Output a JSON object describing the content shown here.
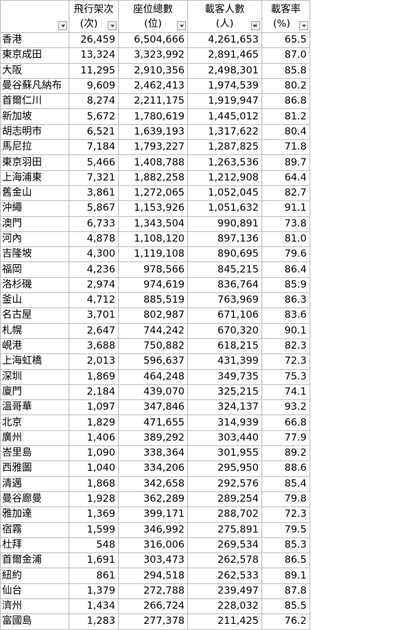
{
  "headers": [
    {
      "l1": "",
      "l2": ""
    },
    {
      "l1": "飛行架次",
      "l2": "(次)"
    },
    {
      "l1": "座位總數",
      "l2": "(位)"
    },
    {
      "l1": "載客人數",
      "l2": "(人)"
    },
    {
      "l1": "載客率",
      "l2": "(%)"
    }
  ],
  "rows": [
    [
      "香港",
      "26,459",
      "6,504,666",
      "4,261,653",
      "65.5"
    ],
    [
      "東京成田",
      "13,324",
      "3,323,992",
      "2,891,465",
      "87.0"
    ],
    [
      "大阪",
      "11,295",
      "2,910,356",
      "2,498,301",
      "85.8"
    ],
    [
      "曼谷蘇凡納布",
      "9,609",
      "2,462,413",
      "1,974,539",
      "80.2"
    ],
    [
      "首爾仁川",
      "8,274",
      "2,211,175",
      "1,919,947",
      "86.8"
    ],
    [
      "新加坡",
      "5,672",
      "1,780,619",
      "1,445,012",
      "81.2"
    ],
    [
      "胡志明市",
      "6,521",
      "1,639,193",
      "1,317,622",
      "80.4"
    ],
    [
      "馬尼拉",
      "7,184",
      "1,793,227",
      "1,287,825",
      "71.8"
    ],
    [
      "東京羽田",
      "5,466",
      "1,408,788",
      "1,263,536",
      "89.7"
    ],
    [
      "上海浦東",
      "7,321",
      "1,882,258",
      "1,212,908",
      "64.4"
    ],
    [
      "舊金山",
      "3,861",
      "1,272,065",
      "1,052,045",
      "82.7"
    ],
    [
      "沖繩",
      "5,867",
      "1,153,926",
      "1,051,632",
      "91.1"
    ],
    [
      "澳門",
      "6,733",
      "1,343,504",
      "990,891",
      "73.8"
    ],
    [
      "河內",
      "4,878",
      "1,108,120",
      "897,136",
      "81.0"
    ],
    [
      "吉隆坡",
      "4,300",
      "1,119,108",
      "890,695",
      "79.6"
    ],
    [
      "福岡",
      "4,236",
      "978,566",
      "845,215",
      "86.4"
    ],
    [
      "洛杉磯",
      "2,974",
      "974,619",
      "836,764",
      "85.9"
    ],
    [
      "釜山",
      "4,712",
      "885,519",
      "763,969",
      "86.3"
    ],
    [
      "名古屋",
      "3,701",
      "802,987",
      "671,106",
      "83.6"
    ],
    [
      "札幌",
      "2,647",
      "744,242",
      "670,320",
      "90.1"
    ],
    [
      "峴港",
      "3,688",
      "750,882",
      "618,215",
      "82.3"
    ],
    [
      "上海虹橋",
      "2,013",
      "596,637",
      "431,399",
      "72.3"
    ],
    [
      "深圳",
      "1,869",
      "464,248",
      "349,735",
      "75.3"
    ],
    [
      "廈門",
      "2,184",
      "439,070",
      "325,215",
      "74.1"
    ],
    [
      "溫哥華",
      "1,097",
      "347,846",
      "324,137",
      "93.2"
    ],
    [
      "北京",
      "1,829",
      "471,655",
      "314,939",
      "66.8"
    ],
    [
      "廣州",
      "1,406",
      "389,292",
      "303,440",
      "77.9"
    ],
    [
      "峇里島",
      "1,090",
      "338,364",
      "301,955",
      "89.2"
    ],
    [
      "西雅圖",
      "1,040",
      "334,206",
      "295,950",
      "88.6"
    ],
    [
      "清邁",
      "1,868",
      "342,658",
      "292,576",
      "85.4"
    ],
    [
      "曼谷廊曼",
      "1,928",
      "362,289",
      "289,254",
      "79.8"
    ],
    [
      "雅加達",
      "1,369",
      "399,171",
      "288,702",
      "72.3"
    ],
    [
      "宿霧",
      "1,599",
      "346,992",
      "275,891",
      "79.5"
    ],
    [
      "杜拜",
      "548",
      "316,006",
      "269,534",
      "85.3"
    ],
    [
      "首爾金浦",
      "1,691",
      "303,473",
      "262,578",
      "86.5"
    ],
    [
      "紐約",
      "861",
      "294,518",
      "262,533",
      "89.1"
    ],
    [
      "仙台",
      "1,379",
      "272,788",
      "239,497",
      "87.8"
    ],
    [
      "濟州",
      "1,434",
      "266,724",
      "228,032",
      "85.5"
    ],
    [
      "富國島",
      "1,283",
      "277,378",
      "211,425",
      "76.2"
    ]
  ]
}
